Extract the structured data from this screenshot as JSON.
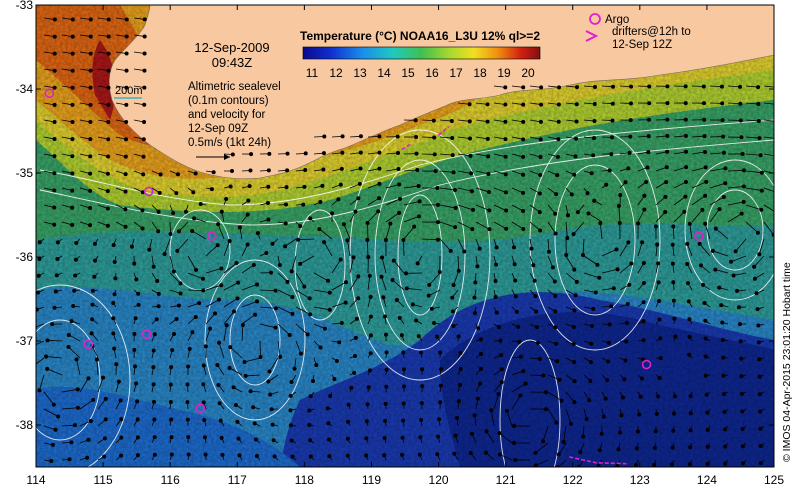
{
  "map": {
    "date": "12-Sep-2009",
    "time": "09:43Z",
    "scale_label": "200m",
    "altimetry_note": [
      "Altimetric sealevel",
      "(0.1m contours)",
      "and velocity for",
      "12-Sep 09Z",
      "0.5m/s (1kt 24h)"
    ],
    "colorbar": {
      "title": "Temperature (°C) NOAA16_L3U 12% ql>=2",
      "ticks": [
        "11",
        "12",
        "13",
        "14",
        "15",
        "16",
        "17",
        "18",
        "19",
        "20"
      ],
      "range": [
        11,
        20
      ]
    },
    "argo": {
      "label_lines": [
        "Argo",
        "drifters@12h to",
        "12-Sep 12Z"
      ],
      "marker_color": "#e020d0"
    },
    "credit": "© IMOS 04-Apr-2015 23:01:20 Hobart time",
    "axes": {
      "x_ticks": [
        "114",
        "115",
        "116",
        "117",
        "118",
        "119",
        "120",
        "121",
        "122",
        "123",
        "124",
        "125"
      ],
      "y_ticks": [
        "-33",
        "-34",
        "-35",
        "-36",
        "-37",
        "-38"
      ],
      "lon_range": [
        114,
        125
      ],
      "lat_range": [
        -38.5,
        -33
      ]
    },
    "colors": {
      "land": "#f8c8a0",
      "contour": "#ffffff",
      "warm": "#f4a21c",
      "cold": "#0a2a9a"
    }
  }
}
